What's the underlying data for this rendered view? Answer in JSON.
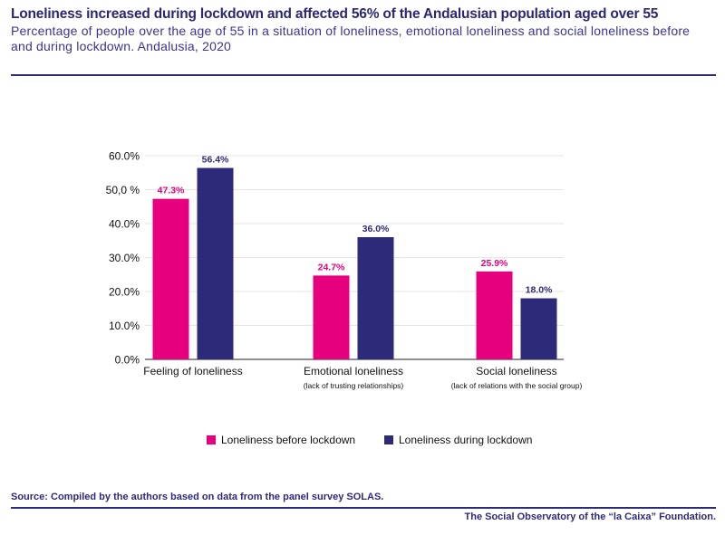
{
  "header": {
    "title": "Loneliness increased during lockdown and affected 56% of the Andalusian population aged over 55",
    "subtitle": "Percentage of people over the age of 55 in a situation of loneliness, emotional loneliness and social loneliness before and during lockdown. Andalusia, 2020"
  },
  "chart_data": {
    "type": "bar",
    "categories": [
      "Feeling of loneliness",
      "Emotional loneliness",
      "Social loneliness"
    ],
    "category_sublabels": [
      "",
      "(lack of trusting relationships)",
      "(lack of relations with the social group)"
    ],
    "series": [
      {
        "name": "Loneliness before lockdown",
        "values": [
          47.3,
          24.7,
          25.9
        ],
        "labels": [
          "47.3%",
          "24.7%",
          "25.9%"
        ],
        "color": "#e6007e"
      },
      {
        "name": "Loneliness during lockdown",
        "values": [
          56.4,
          36.0,
          18.0
        ],
        "labels": [
          "56.4%",
          "36.0%",
          "18.0%"
        ],
        "color": "#2e2a7a"
      }
    ],
    "ylim": [
      0,
      60
    ],
    "yticks": [
      0,
      10,
      20,
      30,
      40,
      50,
      60
    ],
    "ytick_labels": [
      "0.0%",
      "10.0%",
      "20.0%",
      "30.0%",
      "40.0%",
      "50,0 %",
      "60.0%"
    ],
    "grid": true,
    "legend": "bottom"
  },
  "footer": {
    "source": "Source:  Compiled by the authors based on data from the panel survey SOLAS.",
    "credit": "The Social Observatory of the “la Caixa” Foundation."
  }
}
